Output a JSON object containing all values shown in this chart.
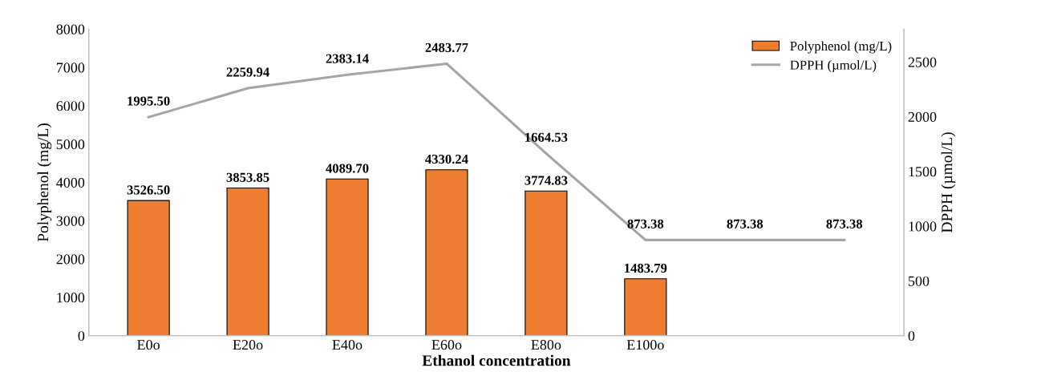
{
  "chart_data": {
    "type": "bar",
    "xlabel": "Ethanol concentration",
    "ylabel": "Polyphenol (mg/L)",
    "y2label": "DPPH (µmol/L)",
    "categories": [
      "E0o",
      "E20o",
      "E40o",
      "E60o",
      "E80o",
      "E100o",
      null,
      null
    ],
    "series": [
      {
        "name": "Polyphenol (mg/L)",
        "color": "#ed7d31",
        "values": [
          3526.5,
          3853.85,
          4089.7,
          4330.24,
          3774.83,
          1483.79,
          null,
          null
        ],
        "value_labels": [
          "3526.50",
          "3853.85",
          "4089.70",
          "4330.24",
          "3774.83",
          "1483.79",
          null,
          null
        ]
      },
      {
        "name": "DPPH (µmol/L)",
        "type": "line",
        "axis": "y2",
        "color": "#a5a5a5",
        "values": [
          1995.5,
          2259.94,
          2383.14,
          2483.77,
          1664.53,
          873.38,
          873.38,
          873.38
        ],
        "value_labels": [
          "1995.50",
          "2259.94",
          "2383.14",
          "2483.77",
          "1664.53",
          "873.38",
          "873.38",
          "873.38"
        ]
      }
    ],
    "ylim": [
      0,
      8000
    ],
    "yticks": [
      0,
      1000,
      2000,
      3000,
      4000,
      5000,
      6000,
      7000,
      8000
    ],
    "y2lim": [
      0,
      2800
    ],
    "y2ticks": [
      0,
      500,
      1000,
      1500,
      2000,
      2500
    ],
    "grid": false,
    "legend": "top right"
  }
}
